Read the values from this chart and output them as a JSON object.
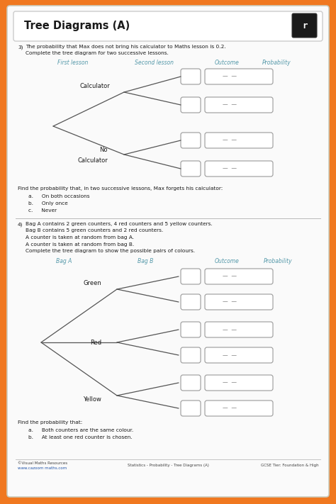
{
  "title": "Tree Diagrams (A)",
  "outer_bg": "#F07820",
  "inner_bg": "#FFFFFF",
  "paper_bg": "#FAFAFA",
  "title_color": "#1A1A1A",
  "blue_color": "#5599AA",
  "text_color": "#1A1A1A",
  "box_edge": "#999999",
  "line_color": "#666666",
  "q3_num": "3)",
  "q3_line1": "The probability that Max does not bring his calculator to Maths lesson is 0.2.",
  "q3_line2": "Complete the tree diagram for two successive lessons.",
  "q3_headers": [
    "First lesson",
    "Second lesson",
    "Outcome",
    "Probability"
  ],
  "q3_branch1": "Calculator",
  "q3_branch2_1": "No",
  "q3_branch2_2": "Calculator",
  "q3_find": "Find the probability that, in two successive lessons, Max forgets his calculator:",
  "q3_a": "a.     On both occasions",
  "q3_b": "b.     Only once",
  "q3_c": "c.     Never",
  "q4_num": "4)",
  "q4_lines": [
    "Bag A contains 2 green counters, 4 red counters and 5 yellow counters.",
    "Bag B contains 5 green counters and 2 red counters.",
    "A counter is taken at random from bag A.",
    "A counter is taken at random from bag B.",
    "Complete the tree diagram to show the possible pairs of colours."
  ],
  "q4_headers": [
    "Bag A",
    "Bag B",
    "Outcome",
    "Probability"
  ],
  "q4_branch1": "Green",
  "q4_branch2": "Red",
  "q4_branch3": "Yellow",
  "q4_find": "Find the probability that:",
  "q4_a": "a.     Both counters are the same colour.",
  "q4_b": "b.     At least one red counter is chosen.",
  "footer_left1": "©Visual Maths Resources",
  "footer_left2": "www.cazoom maths.com",
  "footer_center": "Statistics - Probability - Tree Diagrams (A)",
  "footer_right": "GCSE Tier: Foundation & High",
  "dash_text": "—  —"
}
